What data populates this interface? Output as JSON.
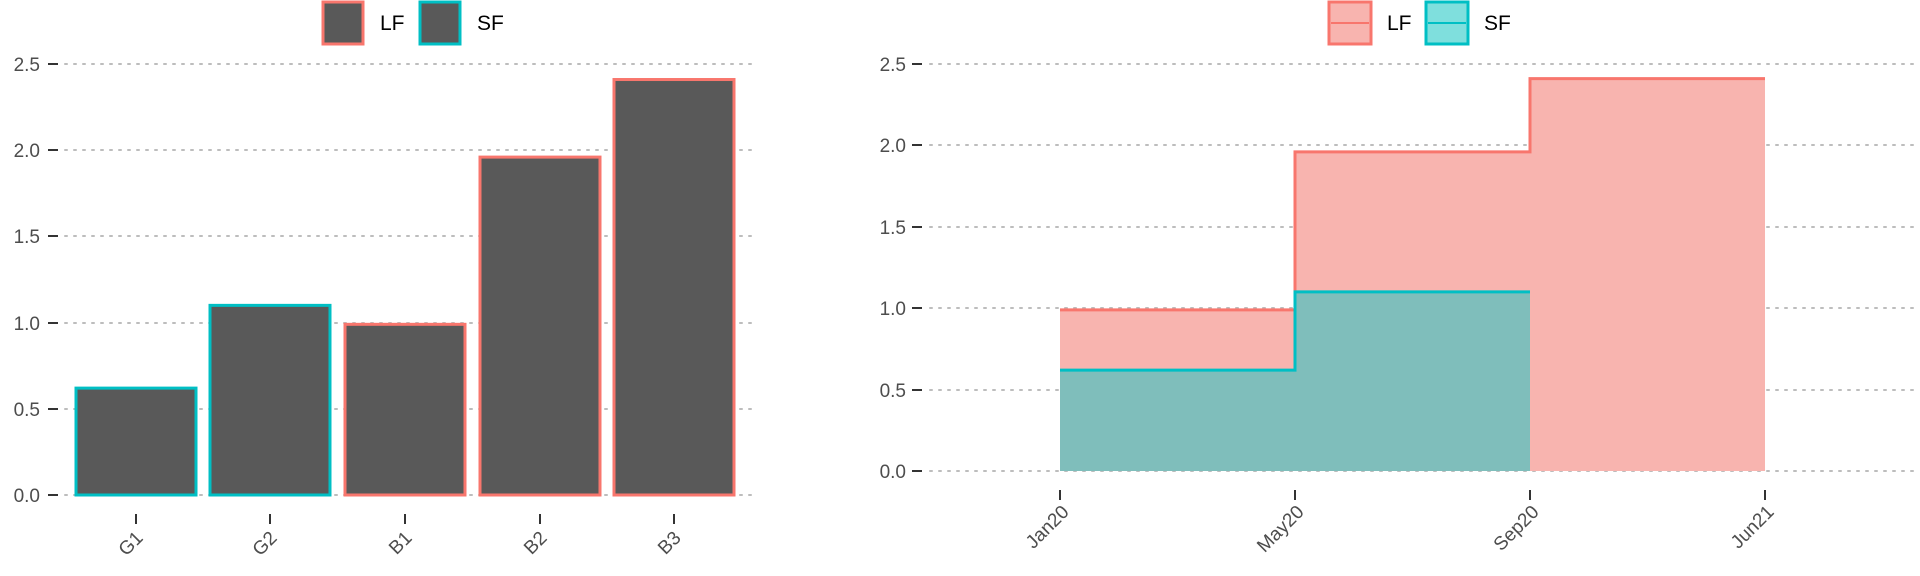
{
  "colors": {
    "LF": "#F8766D",
    "SF": "#00BFC4",
    "bar_fill": "#595959",
    "LF_fill": "#F8B4AF",
    "SF_fill": "#7FBEBB"
  },
  "chart_data": [
    {
      "type": "bar",
      "title": "",
      "xlabel": "",
      "ylabel": "",
      "categories": [
        "G1",
        "G2",
        "B1",
        "B2",
        "B3"
      ],
      "values": [
        0.62,
        1.1,
        0.99,
        1.96,
        2.41
      ],
      "group": [
        "SF",
        "SF",
        "LF",
        "LF",
        "LF"
      ],
      "ylim": [
        0,
        2.5
      ],
      "yticks": [
        "0.0",
        "0.5",
        "1.0",
        "1.5",
        "2.0",
        "2.5"
      ],
      "grid": true,
      "legend": {
        "position": "top",
        "entries": [
          "LF",
          "SF"
        ]
      }
    },
    {
      "type": "area",
      "title": "",
      "xlabel": "",
      "ylabel": "",
      "x_ticks": [
        "Jan20",
        "May20",
        "Sep20",
        "Jun21"
      ],
      "series": [
        {
          "name": "LF",
          "steps": [
            {
              "x": "Jan20",
              "y": 0.99
            },
            {
              "x": "May20",
              "y": 1.96
            },
            {
              "x": "Sep20",
              "y": 2.41
            },
            {
              "x": "Jun21",
              "y": 2.41
            }
          ]
        },
        {
          "name": "SF",
          "steps": [
            {
              "x": "Jan20",
              "y": 0.62
            },
            {
              "x": "May20",
              "y": 1.1
            },
            {
              "x": "Sep20",
              "y": 0
            }
          ]
        }
      ],
      "ylim": [
        0,
        2.5
      ],
      "yticks": [
        "0.0",
        "0.5",
        "1.0",
        "1.5",
        "2.0",
        "2.5"
      ],
      "grid": true,
      "legend": {
        "position": "top",
        "entries": [
          "LF",
          "SF"
        ]
      }
    }
  ]
}
